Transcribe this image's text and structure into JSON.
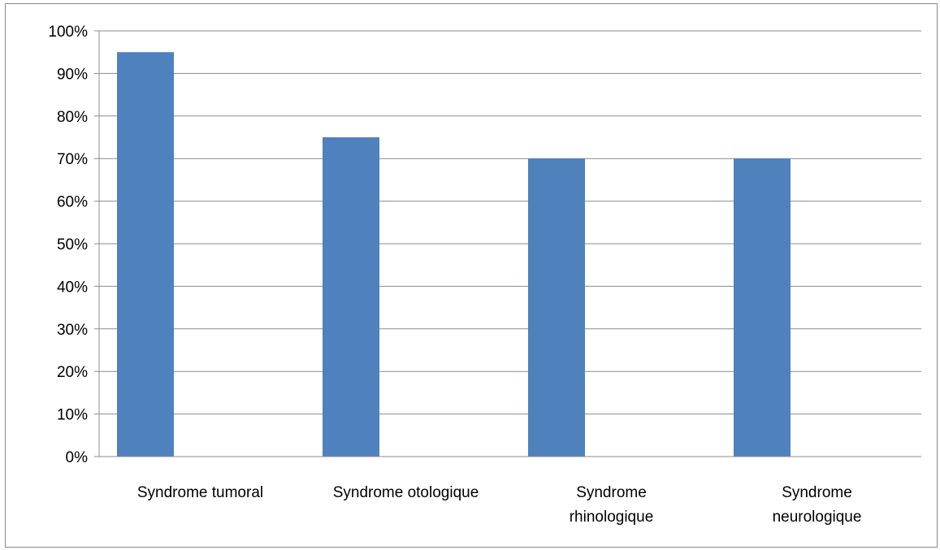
{
  "chart_data": {
    "type": "bar",
    "categories": [
      [
        "Syndrome tumoral"
      ],
      [
        "Syndrome otologique"
      ],
      [
        "Syndrome",
        "rhinologique"
      ],
      [
        "Syndrome",
        "neurologique"
      ]
    ],
    "values": [
      95,
      75,
      70,
      70
    ],
    "title": "",
    "xlabel": "",
    "ylabel": "",
    "ylim": [
      0,
      100
    ],
    "y_ticks": [
      "0%",
      "10%",
      "20%",
      "30%",
      "40%",
      "50%",
      "60%",
      "70%",
      "80%",
      "90%",
      "100%"
    ],
    "grid": true,
    "bar_color": "#4F81BD",
    "grid_color": "#8C8C8C"
  }
}
